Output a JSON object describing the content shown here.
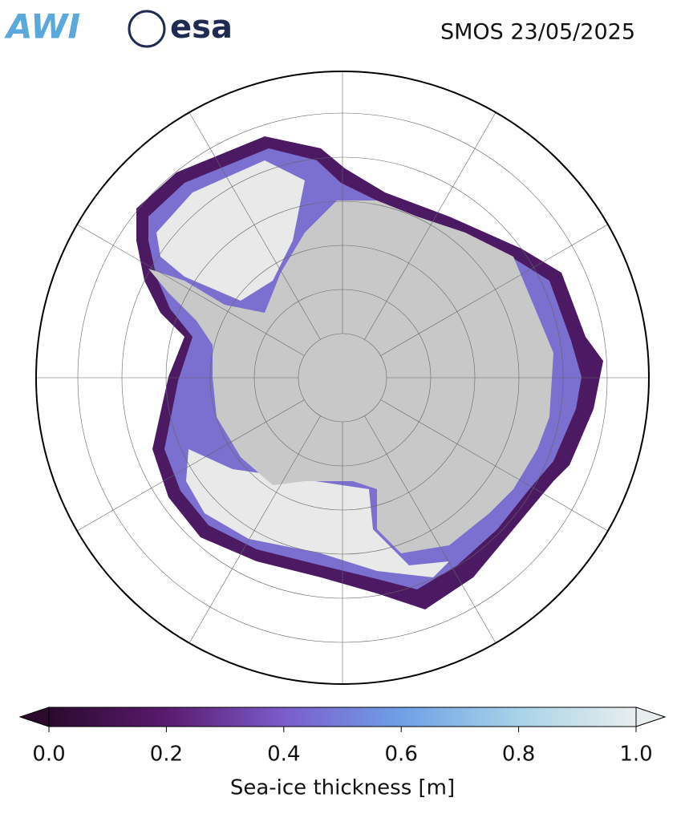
{
  "header": {
    "logos": [
      "AWI",
      "esa"
    ],
    "title": "SMOS 23/05/2025"
  },
  "colorbar": {
    "label": "Sea-ice thickness [m]",
    "lim": [
      0,
      1
    ],
    "ticks": [
      {
        "value": 0,
        "label": "0.0"
      },
      0.2,
      0.4,
      0.6,
      0.8,
      {
        "value": 1,
        "label": "1.0"
      }
    ],
    "colors": [
      "#2b0a2e",
      "#5a1a6e",
      "#7b5ccc",
      "#6fa0e6",
      "#a8d3e8",
      "#e8eeee"
    ]
  }
}
